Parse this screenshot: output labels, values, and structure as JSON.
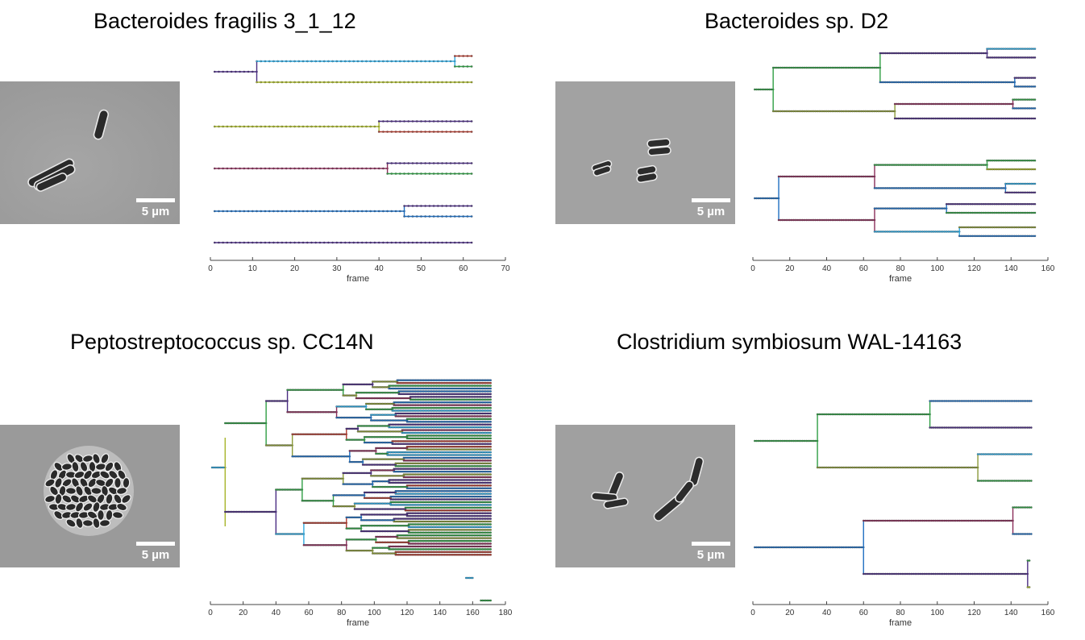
{
  "panels": [
    {
      "id": "bfrag",
      "title": "Bacteroides fragilis 3_1_12",
      "scalebar_label": "5 µm",
      "chart_data": {
        "type": "lineage-tree",
        "xlabel": "frame",
        "xlim": [
          0,
          70
        ],
        "xticks": [
          0,
          10,
          20,
          30,
          40,
          50,
          60,
          70
        ],
        "lanes": [
          {
            "track": [
              {
                "from": 1,
                "to": 11,
                "row": 0,
                "child_rows": [
                  -1,
                  1
                ],
                "color": "#4b2e83"
              },
              {
                "from": 11,
                "to": 58,
                "row": -1,
                "child_rows": [
                  -1.5,
                  -0.5
                ],
                "color": "#2ea8df"
              },
              {
                "from": 11,
                "to": 62,
                "row": 1,
                "color": "#a7b52b"
              },
              {
                "from": 58,
                "to": 62,
                "row": -1.5,
                "color": "#b03a2e"
              },
              {
                "from": 58,
                "to": 62,
                "row": -0.5,
                "color": "#2f9e44"
              }
            ]
          },
          {
            "track": [
              {
                "from": 1,
                "to": 40,
                "row": 0,
                "child_rows": [
                  -0.5,
                  0.5
                ],
                "color": "#a7b52b"
              },
              {
                "from": 40,
                "to": 62,
                "row": -0.5,
                "color": "#4b2e83"
              },
              {
                "from": 40,
                "to": 62,
                "row": 0.5,
                "color": "#b03a2e"
              }
            ]
          },
          {
            "track": [
              {
                "from": 1,
                "to": 42,
                "row": 0,
                "child_rows": [
                  -0.5,
                  0.5
                ],
                "color": "#8b2e5a"
              },
              {
                "from": 42,
                "to": 62,
                "row": -0.5,
                "color": "#4b2e83"
              },
              {
                "from": 42,
                "to": 62,
                "row": 0.5,
                "color": "#2f9e44"
              }
            ]
          },
          {
            "track": [
              {
                "from": 1,
                "to": 46,
                "row": 0,
                "child_rows": [
                  -0.5,
                  0.5
                ],
                "color": "#1f6fc1"
              },
              {
                "from": 46,
                "to": 62,
                "row": -0.5,
                "color": "#4b2e83"
              },
              {
                "from": 46,
                "to": 62,
                "row": 0.5,
                "color": "#1f6fc1"
              }
            ]
          },
          {
            "track": [
              {
                "from": 1,
                "to": 62,
                "row": 0,
                "color": "#4b2e83"
              }
            ]
          }
        ]
      }
    },
    {
      "id": "bd2",
      "title": "Bacteroides sp. D2",
      "scalebar_label": "5 µm",
      "chart_data": {
        "type": "lineage-tree",
        "xlabel": "frame",
        "xlim": [
          0,
          160
        ],
        "xticks": [
          0,
          20,
          40,
          60,
          80,
          100,
          120,
          140,
          160
        ],
        "lanes": [
          {
            "track": [
              {
                "from": 1,
                "to": 11,
                "row": 0,
                "child_rows": [
                  -1.5,
                  1.5
                ],
                "color": "#2f9e44"
              },
              {
                "from": 11,
                "to": 69,
                "row": -1.5,
                "child_rows": [
                  -2.5,
                  -0.5
                ],
                "color": "#2f9e44"
              },
              {
                "from": 11,
                "to": 77,
                "row": 1.5,
                "child_rows": [
                  1,
                  2
                ],
                "color": "#8b9a3a"
              },
              {
                "from": 69,
                "to": 127,
                "row": -2.5,
                "child_rows": [
                  -2.8,
                  -2.2
                ],
                "color": "#4b2e83"
              },
              {
                "from": 69,
                "to": 142,
                "row": -0.5,
                "child_rows": [
                  -0.8,
                  -0.2
                ],
                "color": "#1f6fc1"
              },
              {
                "from": 77,
                "to": 141,
                "row": 1,
                "child_rows": [
                  0.7,
                  1.3
                ],
                "color": "#8b2e5a"
              },
              {
                "from": 77,
                "to": 153,
                "row": 2,
                "color": "#4b2e83"
              },
              {
                "from": 127,
                "to": 153,
                "row": -2.8,
                "color": "#2ea8df"
              },
              {
                "from": 127,
                "to": 153,
                "row": -2.2,
                "color": "#4b2e83"
              },
              {
                "from": 142,
                "to": 153,
                "row": -0.8,
                "color": "#4b2e83"
              },
              {
                "from": 142,
                "to": 153,
                "row": -0.2,
                "color": "#1f6fc1"
              },
              {
                "from": 141,
                "to": 153,
                "row": 0.7,
                "color": "#2f9e44"
              },
              {
                "from": 141,
                "to": 153,
                "row": 1.3,
                "color": "#1f6fc1"
              }
            ]
          },
          {
            "track": [
              {
                "from": 1,
                "to": 14,
                "row": 0,
                "child_rows": [
                  -1.5,
                  1.5
                ],
                "color": "#1f6fc1"
              },
              {
                "from": 14,
                "to": 66,
                "row": -1.5,
                "child_rows": [
                  -2.3,
                  -0.7
                ],
                "color": "#8b2e5a"
              },
              {
                "from": 14,
                "to": 66,
                "row": 1.5,
                "child_rows": [
                  0.7,
                  2.3
                ],
                "color": "#8b2e5a"
              },
              {
                "from": 66,
                "to": 127,
                "row": -2.3,
                "child_rows": [
                  -2.6,
                  -2.0
                ],
                "color": "#2f9e44"
              },
              {
                "from": 66,
                "to": 137,
                "row": -0.7,
                "child_rows": [
                  -1.0,
                  -0.4
                ],
                "color": "#1f6fc1"
              },
              {
                "from": 66,
                "to": 105,
                "row": 0.7,
                "child_rows": [
                  0.4,
                  1.0
                ],
                "color": "#1f6fc1"
              },
              {
                "from": 66,
                "to": 112,
                "row": 2.3,
                "child_rows": [
                  2.0,
                  2.6
                ],
                "color": "#2ea8df"
              },
              {
                "from": 127,
                "to": 153,
                "row": -2.6,
                "color": "#2f9e44"
              },
              {
                "from": 127,
                "to": 153,
                "row": -2.0,
                "color": "#a7b52b"
              },
              {
                "from": 137,
                "to": 153,
                "row": -1.0,
                "color": "#2ea8df"
              },
              {
                "from": 137,
                "to": 153,
                "row": -0.4,
                "color": "#4b2e83"
              },
              {
                "from": 105,
                "to": 153,
                "row": 0.4,
                "color": "#4b2e83"
              },
              {
                "from": 105,
                "to": 153,
                "row": 1.0,
                "color": "#2f9e44"
              },
              {
                "from": 112,
                "to": 153,
                "row": 2.0,
                "color": "#8b9a3a"
              },
              {
                "from": 112,
                "to": 153,
                "row": 2.6,
                "color": "#1f6fc1"
              }
            ]
          }
        ]
      }
    },
    {
      "id": "pepto",
      "title": "Peptostreptococcus sp. CC14N",
      "scalebar_label": "5 µm",
      "chart_data": {
        "type": "lineage-tree",
        "xlabel": "frame",
        "xlim": [
          0,
          180
        ],
        "xticks": [
          0,
          20,
          40,
          60,
          80,
          100,
          120,
          140,
          160,
          180
        ],
        "root": {
          "from": 1,
          "split": 9,
          "end": 171
        },
        "generation_splits": [
          9,
          20,
          32,
          56,
          63,
          78,
          92,
          98,
          108,
          112,
          125,
          128,
          142,
          150,
          160
        ],
        "palette": [
          "#4b2e83",
          "#1f6fc1",
          "#2ea8df",
          "#2f9e44",
          "#8b9a3a",
          "#b03a2e",
          "#8b2e5a"
        ],
        "extra_tracks": [
          {
            "from": 156,
            "to": 160,
            "color": "#2ea8df"
          },
          {
            "from": 165,
            "to": 171,
            "color": "#2f9e44"
          }
        ]
      }
    },
    {
      "id": "csym",
      "title": "Clostridium symbiosum WAL-14163",
      "scalebar_label": "5 µm",
      "chart_data": {
        "type": "lineage-tree",
        "xlabel": "frame",
        "xlim": [
          0,
          160
        ],
        "xticks": [
          0,
          20,
          40,
          60,
          80,
          100,
          120,
          140,
          160
        ],
        "lanes": [
          {
            "track": [
              {
                "from": 1,
                "to": 35,
                "row": 0,
                "child_rows": [
                  -1,
                  1
                ],
                "color": "#2f9e44"
              },
              {
                "from": 35,
                "to": 96,
                "row": -1,
                "child_rows": [
                  -1.5,
                  -0.5
                ],
                "color": "#2f9e44"
              },
              {
                "from": 35,
                "to": 122,
                "row": 1,
                "child_rows": [
                  0.5,
                  1.5
                ],
                "color": "#8b9a3a"
              },
              {
                "from": 96,
                "to": 151,
                "row": -1.5,
                "color": "#1f6fc1"
              },
              {
                "from": 96,
                "to": 151,
                "row": -0.5,
                "color": "#4b2e83"
              },
              {
                "from": 122,
                "to": 151,
                "row": 0.5,
                "color": "#2ea8df"
              },
              {
                "from": 122,
                "to": 151,
                "row": 1.5,
                "color": "#2f9e44"
              }
            ]
          },
          {
            "track": [
              {
                "from": 1,
                "to": 60,
                "row": 0,
                "child_rows": [
                  -1,
                  1
                ],
                "color": "#1f6fc1"
              },
              {
                "from": 60,
                "to": 141,
                "row": -1,
                "child_rows": [
                  -1.5,
                  -0.5
                ],
                "color": "#8b2e5a"
              },
              {
                "from": 60,
                "to": 149,
                "row": 1,
                "child_rows": [
                  0.5,
                  1.5
                ],
                "color": "#4b2e83"
              },
              {
                "from": 141,
                "to": 151,
                "row": -1.5,
                "color": "#2f9e44"
              },
              {
                "from": 141,
                "to": 151,
                "row": -0.5,
                "color": "#1f6fc1"
              },
              {
                "from": 149,
                "to": 150,
                "row": 0.5,
                "color": "#2f9e44"
              },
              {
                "from": 149,
                "to": 150,
                "row": 1.5,
                "color": "#a7b52b"
              }
            ]
          }
        ]
      }
    }
  ]
}
